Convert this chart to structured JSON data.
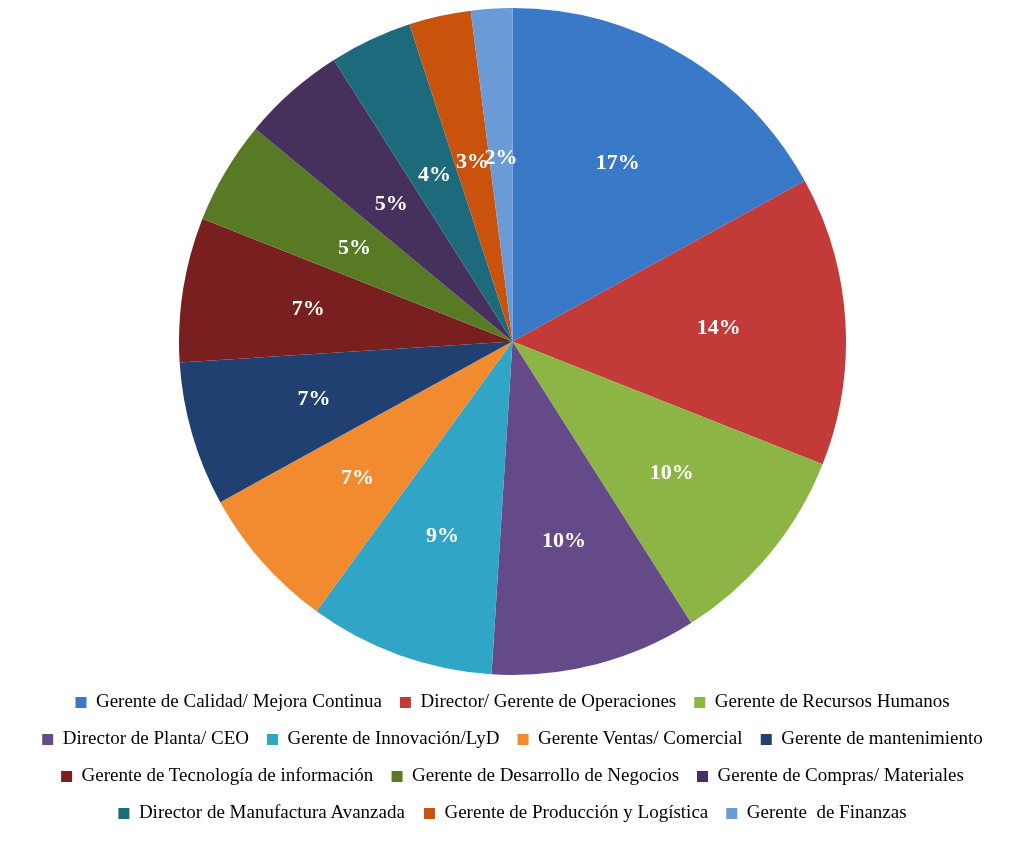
{
  "chart_data": {
    "type": "pie",
    "categories": [
      "Gerente de Calidad/ Mejora Continua",
      "Director/ Gerente de Operaciones",
      "Gerente de Recursos Humanos",
      "Director de Planta/ CEO",
      "Gerente de Innovación/LyD",
      "Gerente Ventas/ Comercial",
      "Gerente de mantenimiento",
      "Gerente de Tecnología de información",
      "Gerente de Desarrollo de Negocios",
      "Gerente de Compras/ Materiales",
      "Director de Manufactura Avanzada",
      "Gerente de Producción y Logística",
      "Gerente  de Finanzas"
    ],
    "values": [
      17,
      14,
      10,
      10,
      9,
      7,
      7,
      7,
      5,
      5,
      4,
      3,
      2
    ],
    "colors": [
      "#3a78c8",
      "#c23b38",
      "#8cb545",
      "#654a8a",
      "#30a5c6",
      "#f28b30",
      "#1f4070",
      "#7a1f1f",
      "#587a24",
      "#45305e",
      "#1c6a7c",
      "#c9520c",
      "#6b9bd7"
    ],
    "value_labels": [
      "17%",
      "14%",
      "10%",
      "10%",
      "9%",
      "7%",
      "7%",
      "7%",
      "5%",
      "5%",
      "4%",
      "3%",
      "2%"
    ],
    "legend": "bottom"
  }
}
